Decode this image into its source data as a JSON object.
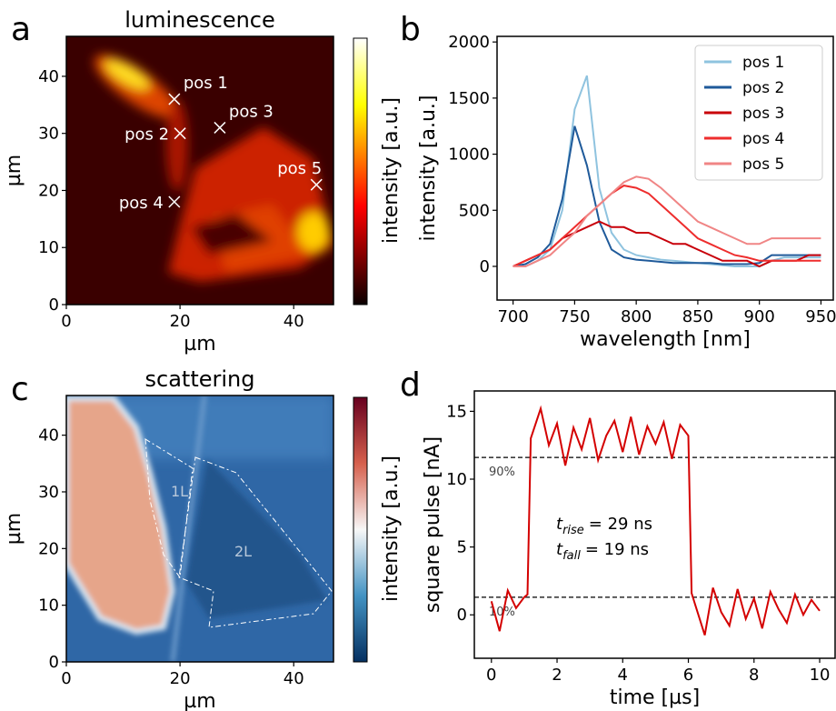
{
  "chart_data": [
    {
      "type": "image",
      "panel": "a",
      "title": "luminescence",
      "x_label": "µm",
      "y_label": "µm",
      "xlim": [
        0,
        47
      ],
      "ylim": [
        0,
        47
      ],
      "xticks": [
        0,
        20,
        40
      ],
      "yticks": [
        0,
        10,
        20,
        30,
        40
      ],
      "colormap": "hot",
      "colorbar_label": "intensity [a.u.]",
      "points": [
        {
          "label": "pos 1",
          "x": 19,
          "y": 36
        },
        {
          "label": "pos 2",
          "x": 20,
          "y": 30
        },
        {
          "label": "pos 3",
          "x": 27,
          "y": 31
        },
        {
          "label": "pos 4",
          "x": 19,
          "y": 18
        },
        {
          "label": "pos 5",
          "x": 44,
          "y": 21
        }
      ]
    },
    {
      "type": "line",
      "panel": "b",
      "x_label": "wavelength [nm]",
      "y_label": "intensity [a.u.]",
      "xlim": [
        687,
        960
      ],
      "ylim": [
        -300,
        2050
      ],
      "xticks": [
        700,
        750,
        800,
        850,
        900,
        950
      ],
      "yticks": [
        0,
        500,
        1000,
        1500,
        2000
      ],
      "legend": "upper right",
      "x": [
        700,
        710,
        720,
        730,
        740,
        750,
        760,
        770,
        780,
        790,
        800,
        810,
        820,
        830,
        840,
        850,
        860,
        870,
        880,
        890,
        900,
        910,
        920,
        930,
        940,
        950
      ],
      "series": [
        {
          "name": "pos 1",
          "color": "#8fc3df",
          "values": [
            0,
            0,
            50,
            150,
            500,
            1400,
            1700,
            700,
            300,
            150,
            100,
            80,
            60,
            50,
            40,
            30,
            20,
            10,
            0,
            0,
            0,
            50,
            80,
            80,
            80,
            80
          ]
        },
        {
          "name": "pos 2",
          "color": "#1f5a9a",
          "values": [
            0,
            20,
            80,
            200,
            600,
            1250,
            900,
            400,
            150,
            80,
            60,
            50,
            40,
            30,
            30,
            30,
            30,
            20,
            20,
            20,
            30,
            100,
            100,
            100,
            100,
            100
          ]
        },
        {
          "name": "pos 3",
          "color": "#c8000a",
          "values": [
            0,
            50,
            100,
            150,
            250,
            300,
            350,
            400,
            350,
            350,
            300,
            300,
            250,
            200,
            200,
            150,
            100,
            50,
            50,
            50,
            0,
            50,
            50,
            50,
            100,
            100
          ]
        },
        {
          "name": "pos 4",
          "color": "#ee2d2d",
          "values": [
            0,
            50,
            100,
            150,
            250,
            350,
            450,
            550,
            650,
            720,
            700,
            650,
            550,
            450,
            350,
            250,
            200,
            150,
            100,
            80,
            50,
            50,
            50,
            50,
            50,
            50
          ]
        },
        {
          "name": "pos 5",
          "color": "#f08585",
          "values": [
            0,
            0,
            50,
            100,
            200,
            300,
            450,
            550,
            650,
            750,
            800,
            780,
            700,
            600,
            500,
            400,
            350,
            300,
            250,
            200,
            200,
            250,
            250,
            250,
            250,
            250
          ]
        }
      ]
    },
    {
      "type": "image",
      "panel": "c",
      "title": "scattering",
      "x_label": "µm",
      "y_label": "µm",
      "xlim": [
        0,
        47
      ],
      "ylim": [
        0,
        47
      ],
      "xticks": [
        0,
        20,
        40
      ],
      "yticks": [
        0,
        10,
        20,
        30,
        40
      ],
      "colormap": "RdBu_r",
      "colorbar_label": "intensity [a.u.]",
      "annotations": [
        "1L",
        "2L"
      ]
    },
    {
      "type": "line",
      "panel": "d",
      "x_label": "time [µs]",
      "y_label": "square pulse [nA]",
      "xlim": [
        -0.52,
        10.47
      ],
      "ylim": [
        -3.2,
        16.5
      ],
      "xticks": [
        0,
        2,
        4,
        6,
        8,
        10
      ],
      "yticks": [
        0,
        5,
        10,
        15
      ],
      "x": [
        0,
        0.25,
        0.5,
        0.75,
        1.0,
        1.1,
        1.2,
        1.5,
        1.75,
        2.0,
        2.25,
        2.5,
        2.75,
        3.0,
        3.25,
        3.5,
        3.75,
        4.0,
        4.25,
        4.5,
        4.75,
        5.0,
        5.25,
        5.5,
        5.75,
        6.0,
        6.1,
        6.2,
        6.5,
        6.75,
        7.0,
        7.25,
        7.5,
        7.75,
        8.0,
        8.25,
        8.5,
        8.75,
        9.0,
        9.25,
        9.5,
        9.75,
        10.0
      ],
      "series": [
        {
          "color": "#d40000",
          "values": [
            1.0,
            -1.2,
            1.8,
            0.5,
            1.3,
            1.5,
            13.0,
            15.2,
            12.5,
            14.1,
            11.0,
            13.8,
            12.2,
            14.5,
            11.4,
            13.2,
            14.3,
            12.0,
            14.6,
            11.8,
            13.9,
            12.6,
            14.2,
            11.5,
            14.0,
            13.2,
            1.6,
            0.8,
            -1.5,
            2.0,
            0.2,
            -0.8,
            1.9,
            -0.3,
            1.2,
            -1.0,
            1.7,
            0.4,
            -0.6,
            1.5,
            0.0,
            1.1,
            0.3
          ]
        }
      ],
      "hlines": [
        {
          "value": 11.6,
          "label": "90%"
        },
        {
          "value": 1.3,
          "label": "10%"
        }
      ],
      "annotations": [
        {
          "symbol": "t",
          "subscript": "rise",
          "text": "= 29 ns"
        },
        {
          "symbol": "t",
          "subscript": "fall",
          "text": "= 19 ns"
        }
      ]
    }
  ]
}
